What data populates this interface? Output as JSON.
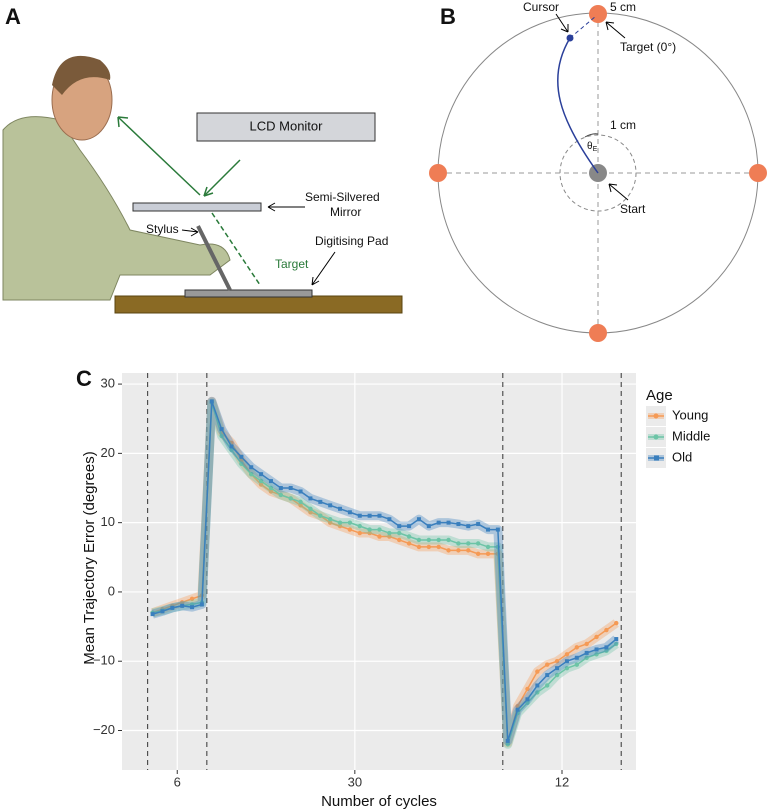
{
  "panel_labels": [
    "A",
    "B",
    "C"
  ],
  "setup": {
    "monitor": "LCD Monitor",
    "mirror": [
      "Semi-Silvered",
      "Mirror"
    ],
    "stylus": "Stylus",
    "pad": "Digitising Pad",
    "target": "Target"
  },
  "task": {
    "cursor": "Cursor",
    "radius": "5 cm",
    "target": "Target (0°)",
    "inner_radius": "1 cm",
    "angle": "θ",
    "angle_sub": "E",
    "start": "Start"
  },
  "chart_data": {
    "type": "line",
    "y_label": "Mean Trajectory Error (degrees)",
    "x_label": "Number of cycles",
    "legend_title": "Age",
    "legend": "right",
    "grid": true,
    "x": [
      1,
      2,
      3,
      4,
      5,
      6,
      7,
      8,
      9,
      10,
      11,
      12,
      13,
      14,
      15,
      16,
      17,
      18,
      19,
      20,
      21,
      22,
      23,
      24,
      25,
      26,
      27,
      28,
      29,
      30,
      31,
      32,
      33,
      34,
      35,
      36,
      37,
      38,
      39,
      40,
      41,
      42,
      43,
      44,
      45,
      46,
      47,
      48
    ],
    "xlim": [
      -2.1,
      50
    ],
    "xticks": [
      {
        "value": 3.5,
        "label": "6"
      },
      {
        "value": 21.5,
        "label": "30"
      },
      {
        "value": 42.5,
        "label": "12"
      }
    ],
    "boundaries": [
      0.5,
      6.5,
      36.5,
      48.5
    ],
    "ylim": [
      -25.7,
      31.6
    ],
    "yticks": [
      {
        "value": -20,
        "label": "−20"
      },
      {
        "value": -10,
        "label": "−10"
      },
      0,
      10,
      20,
      30
    ],
    "series": [
      {
        "name": "Young",
        "color": "#f59a55",
        "marker": "circle",
        "values": [
          -3,
          -2.5,
          -2,
          -1.5,
          -1,
          -0.5,
          27.5,
          23,
          21.5,
          19,
          17,
          15.5,
          14.5,
          14,
          13.5,
          12.5,
          11.5,
          11,
          10,
          9.5,
          9,
          8.5,
          8.5,
          8,
          8,
          7.5,
          7,
          6.5,
          6.5,
          6.5,
          6,
          6,
          6,
          5.5,
          5.5,
          5.5,
          -21.8,
          -16.5,
          -14,
          -11.5,
          -10.5,
          -10,
          -9,
          -8,
          -7.5,
          -6.5,
          -5.5,
          -4.5
        ]
      },
      {
        "name": "Middle",
        "color": "#6cc4a6",
        "marker": "circle",
        "values": [
          -3,
          -2.7,
          -2.3,
          -2,
          -1.8,
          -1.5,
          27.3,
          22.5,
          20.5,
          18.5,
          17,
          16,
          15,
          14,
          13.5,
          13,
          12,
          11,
          10.5,
          10,
          10,
          9.5,
          9,
          9,
          8.5,
          8.5,
          8,
          7.5,
          7.5,
          7.5,
          7.5,
          7,
          7,
          7,
          6.5,
          6.5,
          -22,
          -17.5,
          -16,
          -14.5,
          -13.5,
          -12,
          -11,
          -10.5,
          -9.5,
          -9,
          -8.5,
          -7.5
        ]
      },
      {
        "name": "Old",
        "color": "#3a7fbd",
        "marker": "square",
        "values": [
          -3.2,
          -2.8,
          -2.3,
          -2,
          -2.2,
          -1.8,
          27.5,
          23.5,
          21,
          19.5,
          18,
          17,
          16,
          15,
          15,
          14.5,
          13.5,
          13,
          12.5,
          12,
          11.5,
          11,
          11,
          11,
          10.5,
          9.5,
          9.5,
          10.5,
          9.5,
          10,
          10,
          9.8,
          9.5,
          9.8,
          9,
          9,
          -21.5,
          -17,
          -15.5,
          -13.5,
          -12,
          -11,
          -10,
          -9.5,
          -8.8,
          -8.3,
          -8,
          -6.8
        ]
      }
    ]
  }
}
